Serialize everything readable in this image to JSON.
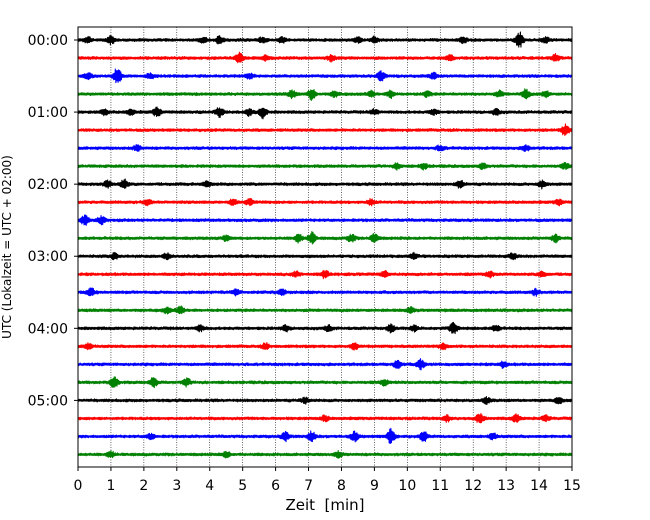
{
  "chart_data": {
    "type": "line",
    "chart_kind": "helicorder / seismogram drum plot",
    "xlabel": "Zeit  [min]",
    "ylabel": "UTC (Lokalzeit = UTC + 02:00)",
    "xlim": [
      0,
      15
    ],
    "x_ticks": [
      "0",
      "1",
      "2",
      "3",
      "4",
      "5",
      "6",
      "7",
      "8",
      "9",
      "10",
      "11",
      "12",
      "13",
      "14",
      "15"
    ],
    "y_tick_labels": [
      "00:00",
      "01:00",
      "02:00",
      "03:00",
      "04:00",
      "05:00"
    ],
    "minutes_per_trace": 15,
    "traces_per_hour": 4,
    "grid": "vertical dotted lines at each minute",
    "trace_colors": [
      "#000000",
      "#ff0000",
      "#0000ff",
      "#008000"
    ],
    "traces": [
      {
        "start": "00:00",
        "color": "#000000",
        "bursts": [
          [
            0.3,
            0.3
          ],
          [
            1.0,
            0.4
          ],
          [
            3.8,
            0.3
          ],
          [
            4.3,
            0.4
          ],
          [
            5.6,
            0.3
          ],
          [
            6.2,
            0.3
          ],
          [
            8.5,
            0.3
          ],
          [
            9.0,
            0.3
          ],
          [
            11.7,
            0.3
          ],
          [
            13.4,
            0.8
          ],
          [
            14.2,
            0.3
          ]
        ]
      },
      {
        "start": "00:15",
        "color": "#ff0000",
        "bursts": [
          [
            4.9,
            0.5
          ],
          [
            5.7,
            0.3
          ],
          [
            7.7,
            0.3
          ],
          [
            11.3,
            0.3
          ],
          [
            14.5,
            0.4
          ]
        ]
      },
      {
        "start": "00:30",
        "color": "#0000ff",
        "bursts": [
          [
            0.3,
            0.3
          ],
          [
            1.2,
            0.9
          ],
          [
            2.2,
            0.3
          ],
          [
            5.2,
            0.3
          ],
          [
            9.2,
            0.5
          ],
          [
            10.8,
            0.3
          ]
        ]
      },
      {
        "start": "00:45",
        "color": "#008000",
        "bursts": [
          [
            6.5,
            0.4
          ],
          [
            7.1,
            0.6
          ],
          [
            7.8,
            0.3
          ],
          [
            8.9,
            0.3
          ],
          [
            9.5,
            0.4
          ],
          [
            10.6,
            0.3
          ],
          [
            12.8,
            0.3
          ],
          [
            13.6,
            0.5
          ],
          [
            14.2,
            0.3
          ]
        ]
      },
      {
        "start": "01:00",
        "color": "#000000",
        "bursts": [
          [
            0.8,
            0.3
          ],
          [
            1.6,
            0.3
          ],
          [
            2.4,
            0.5
          ],
          [
            4.3,
            0.5
          ],
          [
            5.2,
            0.4
          ],
          [
            5.6,
            0.6
          ],
          [
            9.0,
            0.3
          ],
          [
            10.8,
            0.3
          ],
          [
            12.7,
            0.3
          ]
        ]
      },
      {
        "start": "01:15",
        "color": "#ff0000",
        "bursts": [
          [
            14.8,
            0.6
          ]
        ]
      },
      {
        "start": "01:30",
        "color": "#0000ff",
        "bursts": [
          [
            1.8,
            0.3
          ],
          [
            11.0,
            0.3
          ],
          [
            13.6,
            0.3
          ]
        ]
      },
      {
        "start": "01:45",
        "color": "#008000",
        "bursts": [
          [
            9.7,
            0.3
          ],
          [
            10.5,
            0.3
          ],
          [
            12.3,
            0.3
          ],
          [
            14.8,
            0.3
          ]
        ]
      },
      {
        "start": "02:00",
        "color": "#000000",
        "bursts": [
          [
            0.9,
            0.4
          ],
          [
            1.4,
            0.5
          ],
          [
            3.9,
            0.3
          ],
          [
            11.6,
            0.4
          ],
          [
            14.1,
            0.4
          ]
        ]
      },
      {
        "start": "02:15",
        "color": "#ff0000",
        "bursts": [
          [
            2.1,
            0.3
          ],
          [
            4.7,
            0.3
          ],
          [
            5.2,
            0.3
          ],
          [
            8.9,
            0.3
          ],
          [
            14.6,
            0.3
          ]
        ]
      },
      {
        "start": "02:30",
        "color": "#0000ff",
        "bursts": [
          [
            0.2,
            0.5
          ],
          [
            0.7,
            0.4
          ]
        ]
      },
      {
        "start": "02:45",
        "color": "#008000",
        "bursts": [
          [
            4.5,
            0.3
          ],
          [
            6.7,
            0.4
          ],
          [
            7.1,
            0.6
          ],
          [
            8.3,
            0.4
          ],
          [
            9.0,
            0.5
          ],
          [
            14.5,
            0.4
          ]
        ]
      },
      {
        "start": "03:00",
        "color": "#000000",
        "bursts": [
          [
            1.1,
            0.3
          ],
          [
            2.7,
            0.3
          ],
          [
            10.2,
            0.3
          ],
          [
            13.2,
            0.3
          ]
        ]
      },
      {
        "start": "03:15",
        "color": "#ff0000",
        "bursts": [
          [
            6.6,
            0.3
          ],
          [
            7.5,
            0.4
          ],
          [
            9.3,
            0.3
          ],
          [
            12.5,
            0.3
          ],
          [
            14.1,
            0.3
          ]
        ]
      },
      {
        "start": "03:30",
        "color": "#0000ff",
        "bursts": [
          [
            0.4,
            0.4
          ],
          [
            4.8,
            0.3
          ],
          [
            6.2,
            0.3
          ],
          [
            13.9,
            0.3
          ]
        ]
      },
      {
        "start": "03:45",
        "color": "#008000",
        "bursts": [
          [
            2.7,
            0.3
          ],
          [
            3.1,
            0.4
          ],
          [
            10.1,
            0.3
          ]
        ]
      },
      {
        "start": "04:00",
        "color": "#000000",
        "bursts": [
          [
            3.7,
            0.3
          ],
          [
            6.3,
            0.3
          ],
          [
            7.6,
            0.3
          ],
          [
            9.5,
            0.4
          ],
          [
            10.2,
            0.3
          ],
          [
            11.4,
            0.6
          ],
          [
            12.7,
            0.3
          ]
        ]
      },
      {
        "start": "04:15",
        "color": "#ff0000",
        "bursts": [
          [
            0.3,
            0.3
          ],
          [
            5.7,
            0.3
          ],
          [
            8.4,
            0.3
          ],
          [
            11.1,
            0.3
          ]
        ]
      },
      {
        "start": "04:30",
        "color": "#0000ff",
        "bursts": [
          [
            9.7,
            0.4
          ],
          [
            10.4,
            0.5
          ],
          [
            12.9,
            0.3
          ]
        ]
      },
      {
        "start": "04:45",
        "color": "#008000",
        "bursts": [
          [
            1.1,
            0.6
          ],
          [
            2.3,
            0.5
          ],
          [
            3.3,
            0.4
          ],
          [
            9.3,
            0.3
          ]
        ]
      },
      {
        "start": "05:00",
        "color": "#000000",
        "bursts": [
          [
            6.9,
            0.3
          ],
          [
            12.4,
            0.3
          ],
          [
            14.6,
            0.3
          ]
        ]
      },
      {
        "start": "05:15",
        "color": "#ff0000",
        "bursts": [
          [
            7.5,
            0.3
          ],
          [
            11.2,
            0.3
          ],
          [
            12.2,
            0.5
          ],
          [
            13.3,
            0.4
          ],
          [
            14.2,
            0.3
          ]
        ]
      },
      {
        "start": "05:30",
        "color": "#0000ff",
        "bursts": [
          [
            2.2,
            0.3
          ],
          [
            6.3,
            0.5
          ],
          [
            7.1,
            0.5
          ],
          [
            8.4,
            0.5
          ],
          [
            9.5,
            0.8
          ],
          [
            10.5,
            0.5
          ],
          [
            12.6,
            0.3
          ]
        ]
      },
      {
        "start": "05:45",
        "color": "#008000",
        "bursts": [
          [
            1.0,
            0.3
          ],
          [
            4.5,
            0.3
          ],
          [
            7.9,
            0.3
          ]
        ]
      }
    ]
  }
}
